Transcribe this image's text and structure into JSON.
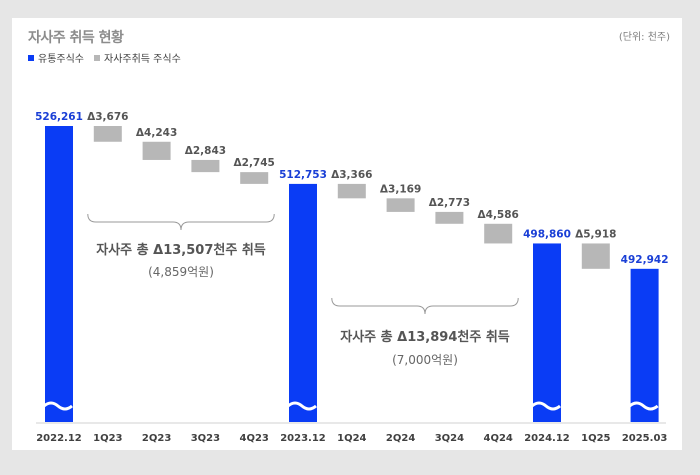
{
  "title": "자사주 취득 현황",
  "unit": "(단위: 천주)",
  "legend": [
    {
      "label": "유통주식수",
      "color": "#0a3cf5"
    },
    {
      "label": "자사주취득 주식수",
      "color": "#b7b7b7"
    }
  ],
  "colors": {
    "total": "#0a3cf5",
    "delta": "#b7b7b7",
    "total_label": "#1a3fd6",
    "delta_label": "#555555"
  },
  "chart_data": {
    "type": "bar",
    "subtype": "waterfall",
    "categories": [
      "2022.12",
      "1Q23",
      "2Q23",
      "3Q23",
      "4Q23",
      "2023.12",
      "1Q24",
      "2Q24",
      "3Q24",
      "4Q24",
      "2024.12",
      "1Q25",
      "2025.03"
    ],
    "bars": [
      {
        "category": "2022.12",
        "kind": "total",
        "value": 526261,
        "label": "526,261"
      },
      {
        "category": "1Q23",
        "kind": "delta",
        "value": -3676,
        "label": "Δ3,676"
      },
      {
        "category": "2Q23",
        "kind": "delta",
        "value": -4243,
        "label": "Δ4,243"
      },
      {
        "category": "3Q23",
        "kind": "delta",
        "value": -2843,
        "label": "Δ2,843"
      },
      {
        "category": "4Q23",
        "kind": "delta",
        "value": -2745,
        "label": "Δ2,745"
      },
      {
        "category": "2023.12",
        "kind": "total",
        "value": 512753,
        "label": "512,753"
      },
      {
        "category": "1Q24",
        "kind": "delta",
        "value": -3366,
        "label": "Δ3,366"
      },
      {
        "category": "2Q24",
        "kind": "delta",
        "value": -3169,
        "label": "Δ3,169"
      },
      {
        "category": "3Q24",
        "kind": "delta",
        "value": -2773,
        "label": "Δ2,773"
      },
      {
        "category": "4Q24",
        "kind": "delta",
        "value": -4586,
        "label": "Δ4,586"
      },
      {
        "category": "2024.12",
        "kind": "total",
        "value": 498860,
        "label": "498,860"
      },
      {
        "category": "1Q25",
        "kind": "delta",
        "value": -5918,
        "label": "Δ5,918"
      },
      {
        "category": "2025.03",
        "kind": "total",
        "value": 492942,
        "label": "492,942"
      }
    ],
    "annotations": [
      {
        "text": "자사주 총 Δ13,507천주 취득",
        "subtext": "(4,859억원)",
        "from_category": "1Q23",
        "to_category": "4Q23"
      },
      {
        "text": "자사주 총 Δ13,894천주 취득",
        "subtext": "(7,000억원)",
        "from_category": "1Q24",
        "to_category": "4Q24"
      }
    ],
    "axis_break": true,
    "grid": false,
    "legend_position": "top-left"
  }
}
